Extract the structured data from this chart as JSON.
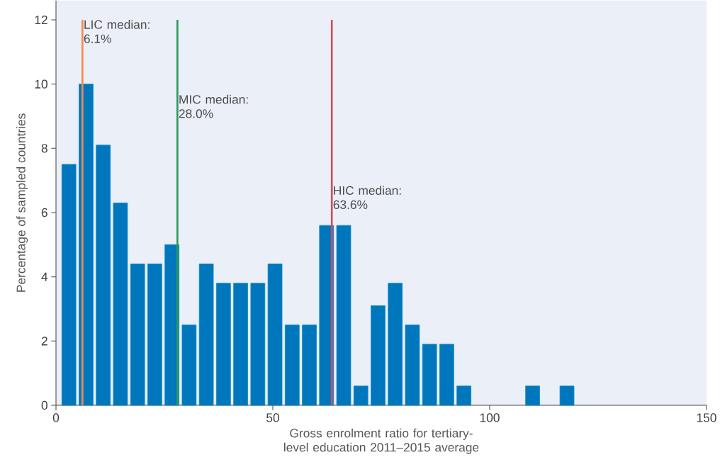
{
  "chart_data": {
    "type": "histogram",
    "xlabel": "Gross enrolment ratio for tertiary-level education 2011–2015 average",
    "ylabel": "Percentage of sampled countries",
    "bins": [
      1,
      4.96,
      8.92,
      12.88,
      16.84,
      20.8,
      24.76,
      28.72,
      32.68,
      36.64,
      40.6,
      44.56,
      48.52,
      52.48,
      56.44,
      60.4,
      64.36,
      68.32,
      72.28,
      76.24,
      80.2,
      84.16,
      88.12,
      92.08,
      96.04,
      100,
      103.96,
      107.92,
      111.88,
      115.84,
      119.8
    ],
    "values": [
      7.5,
      10,
      8.1,
      6.3,
      4.4,
      4.4,
      5,
      2.5,
      4.4,
      3.8,
      3.8,
      3.8,
      4.4,
      2.5,
      2.5,
      5.6,
      5.6,
      0.6,
      3.1,
      3.8,
      2.5,
      1.9,
      1.9,
      0.6,
      0,
      0,
      0,
      0.6,
      0,
      0.6
    ],
    "color": "#0077bd",
    "xlim": [
      0,
      150
    ],
    "xticks": [
      0,
      50,
      100,
      150
    ],
    "ylim": [
      0,
      12.6
    ],
    "yticks": [
      0,
      2,
      4,
      6,
      8,
      10,
      12
    ],
    "grid": false,
    "ref_lines": [
      {
        "axis": "x",
        "value": 6.1,
        "label": "LIC median: 6.1%",
        "color": "#f58a4b"
      },
      {
        "axis": "x",
        "value": 28.0,
        "label": "MIC median: 28.0%",
        "color": "#2a9a5a"
      },
      {
        "axis": "x",
        "value": 63.6,
        "label": "HIC median: 63.6%",
        "color": "#dc4b5a"
      }
    ]
  }
}
